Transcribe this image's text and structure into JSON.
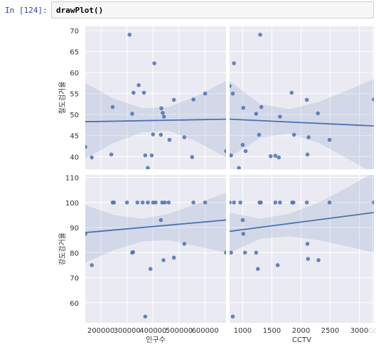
{
  "cell": {
    "prompt": "In [124]:",
    "code": "drawPlot()"
  },
  "colors": {
    "panel_bg": "#eaeaf2",
    "grid": "#ffffff",
    "point": "#4c72b0",
    "line": "#4c72b0",
    "ci_band": "#4c72b0"
  },
  "chart_data": [
    {
      "type": "scatter",
      "panel": "top-left",
      "xlabel": "",
      "ylabel": "절도검거율",
      "xlim": [
        140000,
        680000
      ],
      "ylim": [
        37,
        71
      ],
      "yticks": [
        40,
        45,
        50,
        55,
        60,
        65,
        70
      ],
      "points": [
        [
          140000,
          42.3
        ],
        [
          165000,
          39.8
        ],
        [
          240000,
          40.5
        ],
        [
          245000,
          51.8
        ],
        [
          310000,
          69
        ],
        [
          320000,
          50.2
        ],
        [
          325000,
          55.2
        ],
        [
          345000,
          57
        ],
        [
          365000,
          55.2
        ],
        [
          370000,
          40.3
        ],
        [
          380000,
          37.3
        ],
        [
          395000,
          40.3
        ],
        [
          400000,
          45.3
        ],
        [
          405000,
          62.2
        ],
        [
          430000,
          45.2
        ],
        [
          432000,
          51.5
        ],
        [
          437000,
          50.4
        ],
        [
          442000,
          49.5
        ],
        [
          463000,
          44
        ],
        [
          480000,
          53.5
        ],
        [
          520000,
          44.6
        ],
        [
          550000,
          39.9
        ],
        [
          555000,
          53.6
        ],
        [
          600000,
          55
        ],
        [
          680000,
          41.3
        ]
      ],
      "regression": {
        "x": [
          140000,
          680000
        ],
        "y": [
          48.3,
          48.9
        ]
      },
      "ci_band": {
        "x": [
          140000,
          250000,
          360000,
          460000,
          570000,
          680000
        ],
        "upper": [
          57.5,
          53.8,
          51.5,
          51.8,
          54.5,
          58
        ],
        "lower": [
          39.5,
          43.3,
          45.8,
          46.2,
          43.5,
          39.8
        ]
      }
    },
    {
      "type": "scatter",
      "panel": "top-right",
      "xlabel": "",
      "ylabel": "",
      "xlim": [
        775,
        3250
      ],
      "ylim": [
        37,
        71
      ],
      "points": [
        [
          775,
          56.8
        ],
        [
          800,
          40.3
        ],
        [
          830,
          55
        ],
        [
          850,
          62.2
        ],
        [
          935,
          37.3
        ],
        [
          1000,
          42.8
        ],
        [
          1010,
          51.6
        ],
        [
          1050,
          41.3
        ],
        [
          1230,
          50.2
        ],
        [
          1280,
          45.2
        ],
        [
          1300,
          69
        ],
        [
          1320,
          51.8
        ],
        [
          1480,
          40.1
        ],
        [
          1560,
          40.2
        ],
        [
          1620,
          39.8
        ],
        [
          1640,
          49.5
        ],
        [
          1840,
          55.2
        ],
        [
          1880,
          45.2
        ],
        [
          2100,
          53.5
        ],
        [
          2110,
          40.5
        ],
        [
          2130,
          44.6
        ],
        [
          2290,
          50.3
        ],
        [
          2490,
          44
        ],
        [
          3250,
          53.6
        ]
      ],
      "regression": {
        "x": [
          775,
          3250
        ],
        "y": [
          48.9,
          47.3
        ]
      },
      "ci_band": {
        "x": [
          775,
          1300,
          1800,
          2300,
          2800,
          3250
        ],
        "upper": [
          58,
          52.5,
          51.3,
          53,
          55.8,
          58.5
        ],
        "lower": [
          39.8,
          44.5,
          45.5,
          43.3,
          39.5,
          36
        ]
      }
    },
    {
      "type": "scatter",
      "panel": "bottom-left",
      "xlabel": "인구수",
      "ylabel": "강도검거율",
      "xlim": [
        140000,
        680000
      ],
      "ylim": [
        52,
        111
      ],
      "yticks": [
        60,
        70,
        80,
        90,
        100,
        110
      ],
      "xticks": [
        "200000",
        "300000",
        "400000",
        "500000",
        "600000"
      ],
      "xtick_values": [
        200000,
        300000,
        400000,
        500000,
        600000
      ],
      "points": [
        [
          140000,
          87.5
        ],
        [
          165000,
          75
        ],
        [
          245000,
          100
        ],
        [
          250000,
          100
        ],
        [
          300000,
          100
        ],
        [
          320000,
          80
        ],
        [
          323000,
          80.2
        ],
        [
          340000,
          100
        ],
        [
          360000,
          100
        ],
        [
          370000,
          54.5
        ],
        [
          380000,
          100
        ],
        [
          390000,
          73.5
        ],
        [
          400000,
          100
        ],
        [
          410000,
          100
        ],
        [
          430000,
          93
        ],
        [
          435000,
          100
        ],
        [
          440000,
          77
        ],
        [
          445000,
          100
        ],
        [
          460000,
          100
        ],
        [
          480000,
          78
        ],
        [
          520000,
          83.5
        ],
        [
          555000,
          100
        ],
        [
          600000,
          100
        ],
        [
          680000,
          80
        ]
      ],
      "regression": {
        "x": [
          140000,
          680000
        ],
        "y": [
          88,
          93
        ]
      },
      "ci_band": {
        "x": [
          140000,
          250000,
          360000,
          460000,
          570000,
          680000
        ],
        "upper": [
          99,
          95,
          93.5,
          95.5,
          99.5,
          104
        ],
        "lower": [
          76,
          81,
          84.5,
          85,
          82.5,
          80
        ]
      }
    },
    {
      "type": "scatter",
      "panel": "bottom-right",
      "xlabel": "CCTV",
      "ylabel": "",
      "xlim": [
        775,
        3250
      ],
      "ylim": [
        52,
        111
      ],
      "xticks": [
        "1000",
        "1500",
        "2000",
        "2500",
        "3000",
        "Co"
      ],
      "xtick_values": [
        1000,
        1500,
        2000,
        2500,
        3000,
        3230
      ],
      "points": [
        [
          775,
          100
        ],
        [
          800,
          80
        ],
        [
          830,
          54.5
        ],
        [
          850,
          100
        ],
        [
          960,
          100
        ],
        [
          1000,
          93
        ],
        [
          1010,
          87.5
        ],
        [
          1040,
          80
        ],
        [
          1230,
          80
        ],
        [
          1260,
          73.5
        ],
        [
          1290,
          100
        ],
        [
          1310,
          100
        ],
        [
          1560,
          100
        ],
        [
          1600,
          75
        ],
        [
          1640,
          100
        ],
        [
          1850,
          100
        ],
        [
          1870,
          100
        ],
        [
          2100,
          100
        ],
        [
          2110,
          83.5
        ],
        [
          2120,
          77.5
        ],
        [
          2300,
          77
        ],
        [
          2490,
          100
        ],
        [
          3250,
          100
        ]
      ],
      "regression": {
        "x": [
          775,
          3250
        ],
        "y": [
          88.5,
          96
        ]
      },
      "ci_band": {
        "x": [
          775,
          1300,
          1800,
          2300,
          2800,
          3250
        ],
        "upper": [
          96,
          93.5,
          95.5,
          100,
          106,
          112
        ],
        "lower": [
          80,
          85.5,
          86.5,
          85,
          82.5,
          80
        ]
      }
    }
  ]
}
